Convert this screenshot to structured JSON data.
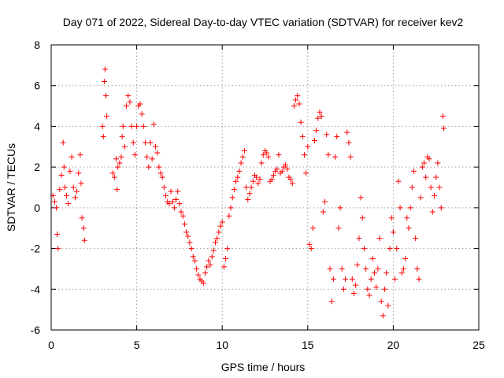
{
  "chart_data": {
    "type": "scatter",
    "title": "Day 071 of 2022, Sidereal Day-to-day VTEC variation (SDTVAR) for receiver kev2",
    "xlabel": "GPS time / hours",
    "ylabel": "SDTVAR / TECUs",
    "xlim": [
      0,
      25
    ],
    "ylim": [
      -6,
      8
    ],
    "xticks": [
      0,
      5,
      10,
      15,
      20,
      25
    ],
    "yticks": [
      -6,
      -4,
      -2,
      0,
      2,
      4,
      6,
      8
    ],
    "xtick_labels": [
      "0",
      "5",
      "10",
      "15",
      "20",
      "25"
    ],
    "ytick_labels": [
      "-6",
      "-4",
      "-2",
      "0",
      "2",
      "4",
      "6",
      "8"
    ],
    "grid": true,
    "marker": "+",
    "color": "#ff0000",
    "series": [
      {
        "name": "SDTVAR kev2",
        "points": [
          [
            0.1,
            0.6
          ],
          [
            0.2,
            0.3
          ],
          [
            0.3,
            0.0
          ],
          [
            0.35,
            -1.3
          ],
          [
            0.4,
            -2.0
          ],
          [
            0.5,
            0.9
          ],
          [
            0.6,
            1.6
          ],
          [
            0.7,
            3.2
          ],
          [
            0.75,
            2.0
          ],
          [
            0.8,
            1.0
          ],
          [
            0.9,
            0.6
          ],
          [
            1.0,
            0.2
          ],
          [
            1.1,
            1.8
          ],
          [
            1.2,
            2.5
          ],
          [
            1.3,
            1.0
          ],
          [
            1.4,
            0.5
          ],
          [
            1.5,
            0.8
          ],
          [
            1.6,
            1.7
          ],
          [
            1.7,
            2.6
          ],
          [
            1.75,
            1.2
          ],
          [
            1.8,
            -0.5
          ],
          [
            1.9,
            -1.0
          ],
          [
            1.95,
            -1.6
          ],
          [
            3.0,
            4.0
          ],
          [
            3.05,
            3.5
          ],
          [
            3.1,
            6.2
          ],
          [
            3.15,
            6.8
          ],
          [
            3.2,
            5.5
          ],
          [
            3.25,
            4.5
          ],
          [
            3.6,
            1.7
          ],
          [
            3.7,
            1.5
          ],
          [
            3.8,
            2.4
          ],
          [
            3.85,
            0.9
          ],
          [
            3.9,
            2.0
          ],
          [
            4.0,
            2.2
          ],
          [
            4.1,
            2.5
          ],
          [
            4.15,
            3.5
          ],
          [
            4.2,
            4.0
          ],
          [
            4.3,
            3.0
          ],
          [
            4.4,
            5.0
          ],
          [
            4.5,
            5.5
          ],
          [
            4.6,
            5.2
          ],
          [
            4.7,
            4.0
          ],
          [
            4.8,
            3.2
          ],
          [
            4.9,
            2.6
          ],
          [
            5.0,
            4.0
          ],
          [
            5.1,
            5.0
          ],
          [
            5.2,
            5.1
          ],
          [
            5.3,
            4.6
          ],
          [
            5.4,
            4.0
          ],
          [
            5.5,
            3.2
          ],
          [
            5.6,
            2.5
          ],
          [
            5.7,
            2.0
          ],
          [
            5.8,
            3.2
          ],
          [
            5.9,
            2.4
          ],
          [
            6.0,
            4.1
          ],
          [
            6.1,
            3.0
          ],
          [
            6.2,
            2.7
          ],
          [
            6.3,
            2.0
          ],
          [
            6.4,
            1.7
          ],
          [
            6.5,
            1.5
          ],
          [
            6.6,
            1.0
          ],
          [
            6.7,
            0.6
          ],
          [
            6.8,
            0.3
          ],
          [
            6.9,
            0.2
          ],
          [
            7.0,
            0.8
          ],
          [
            7.1,
            0.3
          ],
          [
            7.2,
            0.0
          ],
          [
            7.3,
            0.4
          ],
          [
            7.4,
            0.8
          ],
          [
            7.5,
            0.2
          ],
          [
            7.6,
            -0.2
          ],
          [
            7.7,
            -0.4
          ],
          [
            7.8,
            -0.8
          ],
          [
            7.9,
            -1.2
          ],
          [
            8.0,
            -1.4
          ],
          [
            8.1,
            -1.7
          ],
          [
            8.2,
            -2.0
          ],
          [
            8.3,
            -2.4
          ],
          [
            8.4,
            -2.6
          ],
          [
            8.5,
            -3.0
          ],
          [
            8.6,
            -3.3
          ],
          [
            8.7,
            -3.5
          ],
          [
            8.8,
            -3.6
          ],
          [
            8.9,
            -3.7
          ],
          [
            9.0,
            -3.2
          ],
          [
            9.1,
            -2.9
          ],
          [
            9.2,
            -2.6
          ],
          [
            9.3,
            -2.8
          ],
          [
            9.4,
            -2.4
          ],
          [
            9.5,
            -2.1
          ],
          [
            9.6,
            -1.7
          ],
          [
            9.7,
            -1.5
          ],
          [
            9.8,
            -1.2
          ],
          [
            9.9,
            -0.9
          ],
          [
            10.0,
            -0.7
          ],
          [
            10.1,
            -2.9
          ],
          [
            10.2,
            -2.5
          ],
          [
            10.3,
            -2.0
          ],
          [
            10.4,
            -0.4
          ],
          [
            10.5,
            0.0
          ],
          [
            10.6,
            0.5
          ],
          [
            10.7,
            0.9
          ],
          [
            10.8,
            1.3
          ],
          [
            10.9,
            1.5
          ],
          [
            11.0,
            1.8
          ],
          [
            11.1,
            2.2
          ],
          [
            11.2,
            2.5
          ],
          [
            11.3,
            2.8
          ],
          [
            11.4,
            1.0
          ],
          [
            11.5,
            0.4
          ],
          [
            11.6,
            0.7
          ],
          [
            11.7,
            1.0
          ],
          [
            11.8,
            1.3
          ],
          [
            11.9,
            1.6
          ],
          [
            12.0,
            1.5
          ],
          [
            12.1,
            1.2
          ],
          [
            12.2,
            1.4
          ],
          [
            12.3,
            2.2
          ],
          [
            12.4,
            2.6
          ],
          [
            12.5,
            2.8
          ],
          [
            12.6,
            2.7
          ],
          [
            12.7,
            2.5
          ],
          [
            12.8,
            1.3
          ],
          [
            12.9,
            1.4
          ],
          [
            13.0,
            1.6
          ],
          [
            13.1,
            1.8
          ],
          [
            13.2,
            1.9
          ],
          [
            13.3,
            2.6
          ],
          [
            13.4,
            1.7
          ],
          [
            13.5,
            1.8
          ],
          [
            13.6,
            2.0
          ],
          [
            13.7,
            2.1
          ],
          [
            13.8,
            1.9
          ],
          [
            13.9,
            1.5
          ],
          [
            14.0,
            1.4
          ],
          [
            14.1,
            1.2
          ],
          [
            14.2,
            5.0
          ],
          [
            14.3,
            5.3
          ],
          [
            14.4,
            5.5
          ],
          [
            14.5,
            5.1
          ],
          [
            14.6,
            4.2
          ],
          [
            14.7,
            3.5
          ],
          [
            14.8,
            2.6
          ],
          [
            14.9,
            1.7
          ],
          [
            15.0,
            3.0
          ],
          [
            15.1,
            -1.8
          ],
          [
            15.2,
            -2.0
          ],
          [
            15.3,
            -1.0
          ],
          [
            15.4,
            3.3
          ],
          [
            15.5,
            3.8
          ],
          [
            15.6,
            4.4
          ],
          [
            15.7,
            4.7
          ],
          [
            15.8,
            4.5
          ],
          [
            15.9,
            -0.2
          ],
          [
            16.0,
            0.3
          ],
          [
            16.1,
            3.6
          ],
          [
            16.2,
            2.6
          ],
          [
            16.3,
            -3.0
          ],
          [
            16.4,
            -4.6
          ],
          [
            16.5,
            -3.5
          ],
          [
            16.6,
            2.5
          ],
          [
            16.7,
            3.5
          ],
          [
            16.8,
            -1.0
          ],
          [
            16.9,
            0.0
          ],
          [
            17.0,
            -3.0
          ],
          [
            17.1,
            -4.0
          ],
          [
            17.2,
            -3.5
          ],
          [
            17.3,
            3.7
          ],
          [
            17.4,
            3.2
          ],
          [
            17.5,
            2.5
          ],
          [
            17.6,
            -3.5
          ],
          [
            17.7,
            -4.2
          ],
          [
            17.8,
            -3.8
          ],
          [
            17.9,
            -2.8
          ],
          [
            18.0,
            -1.5
          ],
          [
            18.1,
            0.5
          ],
          [
            18.2,
            -0.5
          ],
          [
            18.3,
            -2.0
          ],
          [
            18.4,
            -3.0
          ],
          [
            18.5,
            -4.0
          ],
          [
            18.6,
            -4.3
          ],
          [
            18.7,
            -3.5
          ],
          [
            18.8,
            -2.5
          ],
          [
            18.9,
            -3.2
          ],
          [
            19.0,
            -3.9
          ],
          [
            19.1,
            -3.0
          ],
          [
            19.2,
            -1.5
          ],
          [
            19.3,
            -4.6
          ],
          [
            19.4,
            -5.3
          ],
          [
            19.5,
            -4.0
          ],
          [
            19.6,
            -3.2
          ],
          [
            19.7,
            -4.8
          ],
          [
            19.8,
            -2.0
          ],
          [
            19.9,
            -0.5
          ],
          [
            20.0,
            -1.2
          ],
          [
            20.1,
            -3.5
          ],
          [
            20.2,
            -2.0
          ],
          [
            20.3,
            1.3
          ],
          [
            20.4,
            0.0
          ],
          [
            20.5,
            -3.2
          ],
          [
            20.6,
            -3.0
          ],
          [
            20.7,
            -2.5
          ],
          [
            20.8,
            -0.5
          ],
          [
            20.9,
            -1.0
          ],
          [
            21.0,
            0.0
          ],
          [
            21.1,
            1.0
          ],
          [
            21.2,
            1.8
          ],
          [
            21.3,
            -1.5
          ],
          [
            21.4,
            -3.0
          ],
          [
            21.5,
            -3.5
          ],
          [
            21.6,
            0.5
          ],
          [
            21.7,
            2.0
          ],
          [
            21.8,
            2.2
          ],
          [
            21.9,
            1.5
          ],
          [
            22.0,
            2.5
          ],
          [
            22.1,
            2.4
          ],
          [
            22.2,
            1.0
          ],
          [
            22.3,
            -0.2
          ],
          [
            22.4,
            0.6
          ],
          [
            22.5,
            1.5
          ],
          [
            22.6,
            2.2
          ],
          [
            22.7,
            1.0
          ],
          [
            22.8,
            0.0
          ],
          [
            22.9,
            4.5
          ],
          [
            22.95,
            3.9
          ]
        ]
      }
    ]
  }
}
